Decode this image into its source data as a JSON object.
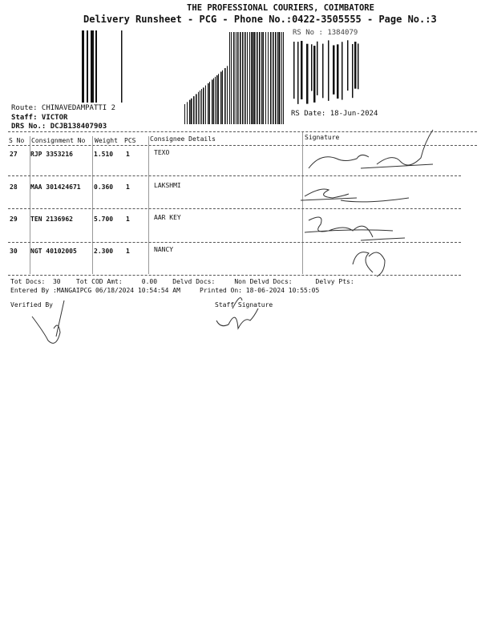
{
  "header": {
    "company": "THE PROFESSIONAL COURIERS, COIMBATORE",
    "subtitle": "Delivery Runsheet - PCG - Phone No.:0422-3505555 - Page No.:3",
    "rs_no": "RS No : 1384079",
    "route": "Route: CHINAVEDAMPATTI 2",
    "staff": "Staff: VICTOR",
    "drs_no": "DRS No.: DCJB138407903",
    "rs_date": "RS Date: 18-Jun-2024"
  },
  "table": {
    "columns": [
      "S No",
      "Consignment No",
      "Weight",
      "PCS",
      "Consignee Details",
      "Signature"
    ],
    "rows": [
      {
        "sno": "27",
        "consignment": "RJP 3353216",
        "weight": "1.510",
        "pcs": "1",
        "consignee": "TEXO"
      },
      {
        "sno": "28",
        "consignment": "MAA 301424671",
        "weight": "0.360",
        "pcs": "1",
        "consignee": "LAKSHMI"
      },
      {
        "sno": "29",
        "consignment": "TEN 2136962",
        "weight": "5.700",
        "pcs": "1",
        "consignee": "AAR KEY"
      },
      {
        "sno": "30",
        "consignment": "NGT 40102005",
        "weight": "2.300",
        "pcs": "1",
        "consignee": "NANCY"
      }
    ]
  },
  "footer": {
    "totals": "Tot Docs:  30    Tot COD Amt:     0.00    Delvd Docs:     Non Delvd Docs:      Delvy Pts:",
    "entered": "Entered By :MANGAIPCG 06/18/2024 10:54:54 AM     Printed On: 18-06-2024 10:55:05",
    "verified_by": "Verified By",
    "staff_signature": "Staff Signature"
  }
}
